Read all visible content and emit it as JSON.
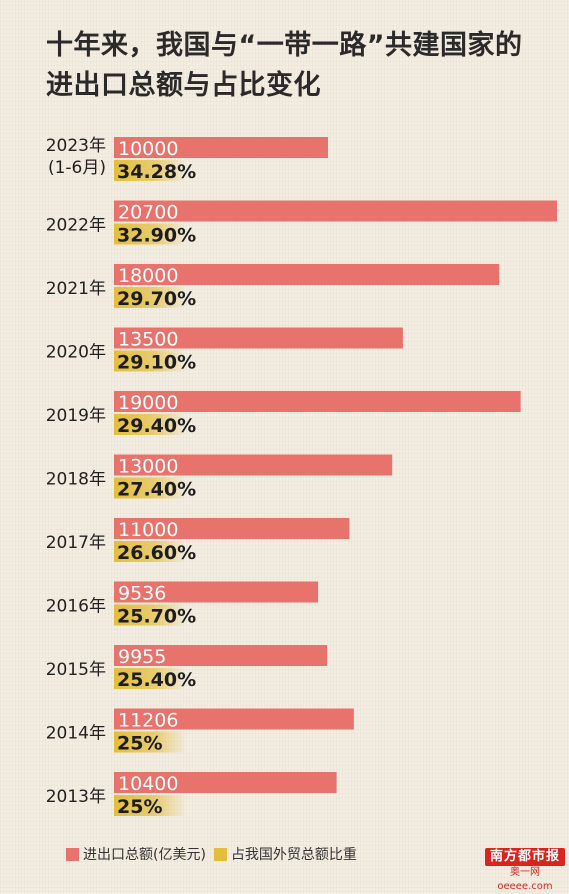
{
  "title_lines": [
    "十年来，我国与“一带一路”共建国家的",
    "进出口总额与占比变化"
  ],
  "colors": {
    "total": "#e8726c",
    "share": "#e3be3c",
    "year_text": "#222222"
  },
  "legend": {
    "total_label": "进出口总额(亿美元)",
    "share_label": "占我国外贸总额比重"
  },
  "logo": {
    "brand": "南方都市报",
    "site": "奥一网oeeee.com"
  },
  "chart_data": {
    "type": "bar",
    "categories": [
      "2023年",
      "2022年",
      "2021年",
      "2020年",
      "2019年",
      "2018年",
      "2017年",
      "2016年",
      "2015年",
      "2014年",
      "2013年"
    ],
    "category_sublabels": [
      "(1-6月)",
      "",
      "",
      "",
      "",
      "",
      "",
      "",
      "",
      "",
      ""
    ],
    "series": [
      {
        "name": "进出口总额(亿美元)",
        "values": [
          10000,
          20700,
          18000,
          13500,
          19000,
          13000,
          11000,
          9536,
          9955,
          11206,
          10400
        ]
      },
      {
        "name": "占我国外贸总额比重",
        "values": [
          34.28,
          32.9,
          29.7,
          29.1,
          29.4,
          27.4,
          26.6,
          25.7,
          25.4,
          25,
          25
        ],
        "labels": [
          "34.28%",
          "32.90%",
          "29.70%",
          "29.10%",
          "29.40%",
          "27.40%",
          "26.60%",
          "25.70%",
          "25.40%",
          "25%",
          "25%"
        ]
      }
    ],
    "total_labels": [
      "10000",
      "20700",
      "18000",
      "13500",
      "19000",
      "13000",
      "11000",
      "9536",
      "9955",
      "11206",
      "10400"
    ]
  }
}
